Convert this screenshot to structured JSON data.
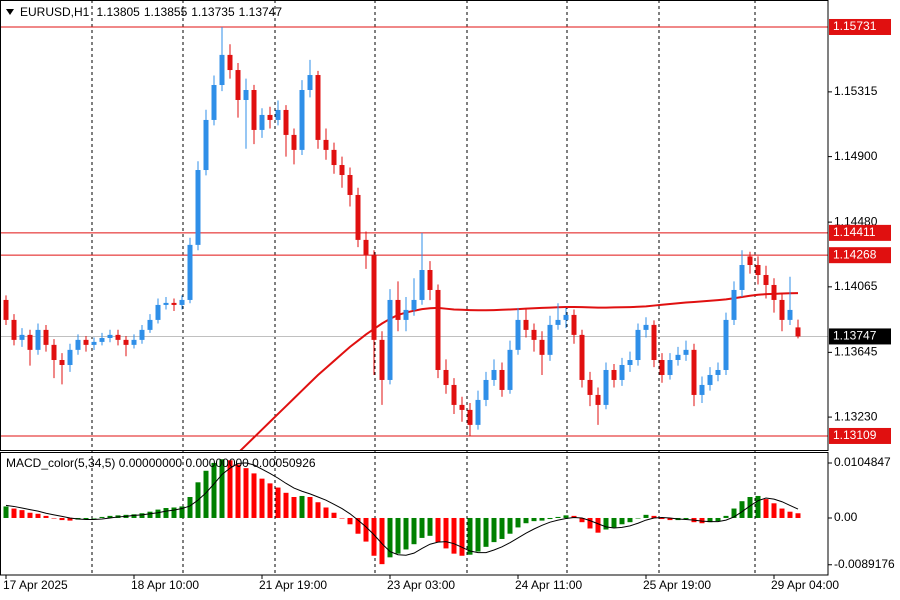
{
  "chart_data": [
    {
      "type": "candlestick",
      "title": "EURUSD,H1",
      "ohlc_header": [
        1.13805,
        1.13855,
        1.13735,
        1.13747
      ],
      "x": [
        "17 Apr 2025",
        null,
        null,
        null,
        null,
        null,
        null,
        null,
        null,
        null,
        null,
        null,
        null,
        null,
        null,
        null,
        "18 Apr 10:00",
        null,
        null,
        null,
        null,
        null,
        null,
        null,
        null,
        null,
        null,
        null,
        null,
        null,
        null,
        null,
        "21 Apr 19:00",
        null,
        null,
        null,
        null,
        null,
        null,
        null,
        null,
        null,
        null,
        null,
        null,
        null,
        null,
        null,
        "23 Apr 03:00",
        null,
        null,
        null,
        null,
        null,
        null,
        null,
        null,
        null,
        null,
        null,
        null,
        null,
        null,
        null,
        "24 Apr 11:00",
        null,
        null,
        null,
        null,
        null,
        null,
        null,
        null,
        null,
        null,
        null,
        null,
        null,
        null,
        null,
        "25 Apr 19:00",
        null,
        null,
        null,
        null,
        null,
        null,
        null,
        null,
        null,
        null,
        null,
        null,
        null,
        null,
        null,
        "29 Apr 04:00",
        null,
        null,
        null
      ],
      "open": [
        1.13981,
        1.13853,
        1.13725,
        1.13757,
        1.13661,
        1.13789,
        1.13693,
        1.13596,
        1.13564,
        1.13661,
        1.13725,
        1.13693,
        1.13712,
        1.13737,
        1.13757,
        1.13725,
        1.13693,
        1.13725,
        1.13789,
        1.13853,
        1.13949,
        1.13962,
        1.13949,
        1.13981,
        1.14334,
        1.14814,
        1.15135,
        1.15359,
        1.15552,
        1.15455,
        1.15263,
        1.15327,
        1.15071,
        1.15167,
        1.15135,
        1.15199,
        1.15039,
        1.14943,
        1.15327,
        1.15423,
        1.15007,
        1.14943,
        1.14846,
        1.14782,
        1.14654,
        1.14366,
        1.1427,
        1.13725,
        1.13468,
        1.13981,
        1.13853,
        1.13917,
        1.13981,
        1.14173,
        1.14045,
        1.13532,
        1.13436,
        1.13308,
        1.13276,
        1.1318,
        1.1334,
        1.13468,
        1.13532,
        1.13404,
        1.13661,
        1.13853,
        1.13789,
        1.13725,
        1.13629,
        1.13821,
        1.13853,
        1.13885,
        1.13757,
        1.13468,
        1.13372,
        1.13308,
        1.13532,
        1.13468,
        1.13564,
        1.13596,
        1.13789,
        1.13821,
        1.13596,
        1.135,
        1.13596,
        1.13629,
        1.13661,
        1.13372,
        1.13436,
        1.135,
        1.13532,
        1.13853,
        1.14045,
        1.1426,
        1.14205,
        1.14141,
        1.14077,
        1.13981,
        1.13853,
        1.13805
      ],
      "high": [
        1.1401,
        1.1389,
        1.138,
        1.1379,
        1.1383,
        1.1382,
        1.1373,
        1.1364,
        1.137,
        1.1376,
        1.1375,
        1.1374,
        1.1377,
        1.1379,
        1.1379,
        1.1375,
        1.1376,
        1.1382,
        1.1389,
        1.1399,
        1.14,
        1.1399,
        1.1401,
        1.1438,
        1.1487,
        1.152,
        1.1542,
        1.15731,
        1.1562,
        1.155,
        1.154,
        1.1536,
        1.1521,
        1.1522,
        1.1526,
        1.1523,
        1.1508,
        1.1539,
        1.1552,
        1.1545,
        1.1508,
        1.1499,
        1.149,
        1.1483,
        1.147,
        1.1442,
        1.143,
        1.1378,
        1.1405,
        1.141,
        1.14,
        1.1412,
        1.14411,
        1.1423,
        1.1408,
        1.136,
        1.1348,
        1.1336,
        1.1332,
        1.134,
        1.1352,
        1.136,
        1.1358,
        1.1372,
        1.1393,
        1.1392,
        1.1383,
        1.1378,
        1.1388,
        1.1396,
        1.1393,
        1.1392,
        1.1379,
        1.1352,
        1.1342,
        1.1358,
        1.1357,
        1.1361,
        1.1365,
        1.1383,
        1.1387,
        1.1385,
        1.1364,
        1.1364,
        1.1368,
        1.1372,
        1.137,
        1.1349,
        1.1355,
        1.1358,
        1.139,
        1.141,
        1.143,
        1.1429,
        1.1426,
        1.142,
        1.1412,
        1.1402,
        1.1413,
        1.13855
      ],
      "low": [
        1.1382,
        1.1369,
        1.1368,
        1.1356,
        1.1363,
        1.1365,
        1.1348,
        1.1344,
        1.1352,
        1.1363,
        1.1365,
        1.1366,
        1.1369,
        1.1371,
        1.1369,
        1.1362,
        1.1367,
        1.137,
        1.1377,
        1.1383,
        1.1392,
        1.1391,
        1.1392,
        1.1396,
        1.143,
        1.1478,
        1.151,
        1.1532,
        1.154,
        1.1515,
        1.1495,
        1.1498,
        1.1502,
        1.1508,
        1.151,
        1.149,
        1.1485,
        1.1491,
        1.1528,
        1.1495,
        1.1488,
        1.1479,
        1.147,
        1.1458,
        1.1432,
        1.1418,
        1.135,
        1.13308,
        1.1344,
        1.1378,
        1.1378,
        1.1388,
        1.1395,
        1.1398,
        1.1348,
        1.1338,
        1.1325,
        1.132,
        1.13109,
        1.1315,
        1.133,
        1.1343,
        1.1336,
        1.1338,
        1.1363,
        1.1374,
        1.1365,
        1.135,
        1.1359,
        1.1379,
        1.138,
        1.137,
        1.1342,
        1.133,
        1.1318,
        1.1328,
        1.1342,
        1.1343,
        1.1352,
        1.1356,
        1.1374,
        1.1355,
        1.1345,
        1.1347,
        1.1356,
        1.1359,
        1.133,
        1.1332,
        1.134,
        1.1346,
        1.135,
        1.1382,
        1.14,
        1.1415,
        1.1408,
        1.1399,
        1.139,
        1.1378,
        1.1382,
        1.13735
      ],
      "close": [
        1.13853,
        1.13725,
        1.13757,
        1.13661,
        1.13789,
        1.13693,
        1.13596,
        1.13564,
        1.13661,
        1.13725,
        1.13693,
        1.13712,
        1.13737,
        1.13757,
        1.13725,
        1.13693,
        1.13725,
        1.13789,
        1.13853,
        1.13949,
        1.13962,
        1.13949,
        1.13981,
        1.14334,
        1.14814,
        1.15135,
        1.15359,
        1.15552,
        1.15455,
        1.15263,
        1.15327,
        1.15071,
        1.15167,
        1.15135,
        1.15199,
        1.15039,
        1.14943,
        1.15327,
        1.15423,
        1.15007,
        1.14943,
        1.14846,
        1.14782,
        1.14654,
        1.14366,
        1.1427,
        1.13725,
        1.13468,
        1.13981,
        1.13853,
        1.13917,
        1.13981,
        1.14173,
        1.14045,
        1.13532,
        1.13436,
        1.13308,
        1.13276,
        1.1318,
        1.1334,
        1.13468,
        1.13532,
        1.13404,
        1.13661,
        1.13853,
        1.13789,
        1.13725,
        1.13629,
        1.13821,
        1.13853,
        1.13885,
        1.13757,
        1.13468,
        1.13372,
        1.13308,
        1.13532,
        1.13468,
        1.13564,
        1.13596,
        1.13789,
        1.13821,
        1.13596,
        1.135,
        1.13596,
        1.13629,
        1.13661,
        1.13372,
        1.13436,
        1.135,
        1.13532,
        1.13853,
        1.14045,
        1.14205,
        1.14205,
        1.14141,
        1.14077,
        1.13981,
        1.13853,
        1.13917,
        1.13747
      ],
      "up_color": "#2f8fe8",
      "down_color": "#e01010",
      "ma": {
        "color": "#e01010",
        "values": [
          null,
          null,
          null,
          null,
          null,
          null,
          null,
          null,
          null,
          null,
          null,
          null,
          null,
          null,
          null,
          null,
          null,
          null,
          null,
          null,
          null,
          null,
          null,
          null,
          null,
          null,
          null,
          null,
          null,
          1.13,
          1.1305,
          1.131,
          1.1315,
          1.132,
          1.1325,
          1.133,
          1.1335,
          1.134,
          1.1345,
          1.135,
          1.13545,
          1.1359,
          1.13635,
          1.1368,
          1.1372,
          1.1376,
          1.13795,
          1.1383,
          1.1386,
          1.13885,
          1.139,
          1.13912,
          1.13922,
          1.13928,
          1.1393,
          1.13925,
          1.1392,
          1.13918,
          1.13916,
          1.13915,
          1.13915,
          1.13916,
          1.13918,
          1.1392,
          1.13922,
          1.13925,
          1.13928,
          1.1393,
          1.13932,
          1.13934,
          1.13936,
          1.13936,
          1.13935,
          1.13933,
          1.13932,
          1.13932,
          1.13933,
          1.13934,
          1.13935,
          1.13937,
          1.1394,
          1.13945,
          1.1395,
          1.13955,
          1.1396,
          1.13965,
          1.13968,
          1.13972,
          1.13976,
          1.1398,
          1.13985,
          1.13992,
          1.14,
          1.14008,
          1.14014,
          1.14018,
          1.1402,
          1.14022,
          1.14024,
          1.14025
        ]
      },
      "levels": [
        1.15731,
        1.14411,
        1.14268,
        1.13109
      ],
      "level_color": "#e01010",
      "last_price": 1.13747,
      "ylim": [
        1.13019,
        1.15904
      ],
      "yticks": [
        1.15315,
        {
          "value": 1.149,
          "label": "1.14900"
        },
        {
          "value": 1.1448,
          "label": "1.14480"
        },
        1.14065,
        1.13645,
        {
          "value": 1.1323,
          "label": "1.13230"
        }
      ]
    },
    {
      "type": "macd",
      "title": "MACD_color(5,34,5) 0.00000000 0.00000000 0.00050926",
      "values": [
        0.0022,
        0.0018,
        0.0015,
        0.001,
        0.0008,
        0.0004,
        0.0,
        -0.0004,
        -0.0005,
        -0.0003,
        -0.0002,
        0.0,
        0.0002,
        0.0004,
        0.0005,
        0.0006,
        0.0007,
        0.0009,
        0.0012,
        0.0016,
        0.0019,
        0.002,
        0.0022,
        0.004,
        0.0068,
        0.009,
        0.0105,
        0.0112,
        0.011,
        0.0102,
        0.0095,
        0.0085,
        0.0075,
        0.0066,
        0.0058,
        0.0048,
        0.004,
        0.0042,
        0.004,
        0.003,
        0.002,
        0.001,
        0.0,
        -0.0012,
        -0.003,
        -0.0045,
        -0.0072,
        -0.0088,
        -0.0075,
        -0.0068,
        -0.006,
        -0.005,
        -0.0038,
        -0.0034,
        -0.0046,
        -0.0058,
        -0.0068,
        -0.0072,
        -0.007,
        -0.0064,
        -0.0055,
        -0.0046,
        -0.004,
        -0.003,
        -0.0018,
        -0.001,
        -0.0006,
        -0.0005,
        -0.0002,
        0.0002,
        0.0005,
        0.0004,
        -0.0008,
        -0.002,
        -0.0028,
        -0.0022,
        -0.0018,
        -0.0012,
        -0.0008,
        0.0,
        0.0006,
        0.0004,
        -0.0002,
        -0.0004,
        -0.0004,
        -0.0002,
        -0.0008,
        -0.001,
        -0.0008,
        -0.0006,
        0.0004,
        0.0018,
        0.0032,
        0.004,
        0.0042,
        0.0036,
        0.0028,
        0.0018,
        0.0012,
        0.0009
      ],
      "signal": [
        0.0024,
        0.0022,
        0.0019,
        0.0016,
        0.0013,
        0.0009,
        0.0006,
        0.0003,
        0.0,
        -0.0002,
        -0.0003,
        -0.0003,
        -0.0002,
        0.0,
        0.0002,
        0.0003,
        0.0005,
        0.0006,
        0.0008,
        0.001,
        0.0013,
        0.0015,
        0.0018,
        0.0023,
        0.0034,
        0.0048,
        0.0065,
        0.0083,
        0.0095,
        0.0104,
        0.0105,
        0.0101,
        0.0093,
        0.0085,
        0.0076,
        0.0066,
        0.0057,
        0.0051,
        0.0046,
        0.004,
        0.0034,
        0.0026,
        0.0018,
        0.0008,
        -0.0004,
        -0.0017,
        -0.0032,
        -0.0049,
        -0.0064,
        -0.007,
        -0.0071,
        -0.0067,
        -0.0058,
        -0.005,
        -0.0046,
        -0.0045,
        -0.0049,
        -0.0056,
        -0.0063,
        -0.0066,
        -0.0066,
        -0.0061,
        -0.0055,
        -0.0047,
        -0.0038,
        -0.0029,
        -0.0021,
        -0.0014,
        -0.0008,
        -0.0004,
        -0.0001,
        0.0001,
        0.0,
        -0.0005,
        -0.0011,
        -0.0017,
        -0.0019,
        -0.0018,
        -0.0015,
        -0.001,
        -0.0004,
        0.0,
        0.0001,
        0.0,
        -0.0002,
        -0.0003,
        -0.0004,
        -0.0006,
        -0.0007,
        -0.0007,
        -0.0004,
        0.0002,
        0.0012,
        0.0023,
        0.0033,
        0.0038,
        0.0036,
        0.0031,
        0.0024,
        0.0017
      ],
      "up_color": "#008000",
      "down_color": "#ff0000",
      "signal_color": "#000000",
      "ylim": [
        -0.01087,
        0.01258
      ],
      "yticks": [
        0.0104847,
        {
          "value": 0,
          "label": "0.00"
        },
        -0.0089176
      ]
    }
  ]
}
